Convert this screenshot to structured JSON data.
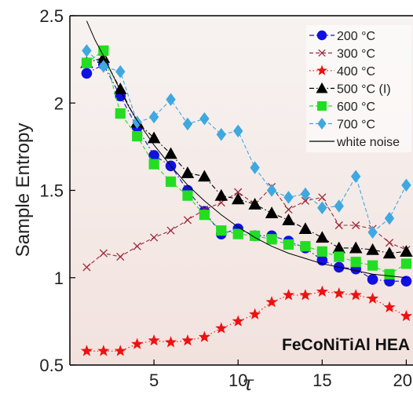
{
  "chart_data": {
    "type": "line",
    "title": "",
    "xlabel": "τ",
    "ylabel": "Sample Entropy",
    "xlim": [
      0,
      20.4
    ],
    "ylim": [
      0.5,
      2.5
    ],
    "xticks": [
      5,
      10,
      15,
      20
    ],
    "yticks": [
      0.5,
      1,
      1.5,
      2,
      2.5
    ],
    "xtick_labels": [
      "5",
      "10",
      "15",
      "20"
    ],
    "ytick_labels": [
      "0.5",
      "1",
      "1.5",
      "2",
      "2.5"
    ],
    "grid": false,
    "legend_position": "top-right",
    "background_gradient": [
      "#f7f3f1",
      "#f2e2de"
    ],
    "annotation": "FeCoNiTiAl HEA",
    "series": [
      {
        "name": "200 °C",
        "color": "#1010e0",
        "marker": "circle",
        "line_style": "dashdot",
        "x": [
          1,
          2,
          3,
          4,
          5,
          6,
          7,
          8,
          9,
          10,
          11,
          12,
          13,
          14,
          15,
          16,
          17,
          18,
          19,
          20
        ],
        "y": [
          2.17,
          2.22,
          2.04,
          1.86,
          1.7,
          1.64,
          1.5,
          1.38,
          1.25,
          1.28,
          1.24,
          1.24,
          1.21,
          1.17,
          1.1,
          1.06,
          1.05,
          0.99,
          0.98,
          0.98
        ]
      },
      {
        "name": "300 °C",
        "color": "#9a2a3a",
        "marker": "x",
        "line_style": "dashed",
        "x": [
          1,
          2,
          3,
          4,
          5,
          6,
          7,
          8,
          9,
          10,
          11,
          12,
          13,
          14,
          15,
          16,
          17,
          18,
          19,
          20
        ],
        "y": [
          1.06,
          1.14,
          1.12,
          1.18,
          1.23,
          1.27,
          1.33,
          1.39,
          1.43,
          1.49,
          1.42,
          1.52,
          1.39,
          1.44,
          1.46,
          1.3,
          1.3,
          1.28,
          1.2,
          1.16
        ]
      },
      {
        "name": "400 °C",
        "color": "#ee1111",
        "marker": "star",
        "line_style": "dotted",
        "x": [
          1,
          2,
          3,
          4,
          5,
          6,
          7,
          8,
          9,
          10,
          11,
          12,
          13,
          14,
          15,
          16,
          17,
          18,
          19,
          20
        ],
        "y": [
          0.58,
          0.58,
          0.58,
          0.62,
          0.64,
          0.63,
          0.64,
          0.66,
          0.71,
          0.75,
          0.79,
          0.86,
          0.9,
          0.9,
          0.92,
          0.91,
          0.9,
          0.88,
          0.83,
          0.78
        ]
      },
      {
        "name": "500 °C (I)",
        "color": "#000000",
        "marker": "triangle",
        "line_style": "dashdot",
        "x": [
          1,
          2,
          3,
          4,
          5,
          6,
          7,
          8,
          9,
          10,
          11,
          12,
          13,
          14,
          15,
          16,
          17,
          18,
          19,
          20
        ],
        "y": [
          2.23,
          2.26,
          2.08,
          1.89,
          1.8,
          1.71,
          1.6,
          1.58,
          1.47,
          1.45,
          1.42,
          1.37,
          1.33,
          1.28,
          1.23,
          1.17,
          1.17,
          1.16,
          1.14,
          1.15
        ]
      },
      {
        "name": "600 °C",
        "color": "#22dd22",
        "marker": "square",
        "line_style": "dashed",
        "x": [
          1,
          2,
          3,
          4,
          5,
          6,
          7,
          8,
          9,
          10,
          11,
          12,
          13,
          14,
          15,
          16,
          17,
          18,
          19,
          20
        ],
        "y": [
          2.23,
          2.3,
          1.94,
          1.81,
          1.65,
          1.55,
          1.47,
          1.36,
          1.27,
          1.25,
          1.24,
          1.22,
          1.19,
          1.18,
          1.15,
          1.12,
          1.09,
          1.07,
          1.02,
          1.08
        ]
      },
      {
        "name": "700 °C",
        "color": "#3fa8e0",
        "marker": "diamond",
        "line_style": "dashed",
        "x": [
          1,
          2,
          3,
          4,
          5,
          6,
          7,
          8,
          9,
          10,
          11,
          12,
          13,
          14,
          15,
          16,
          17,
          18,
          19,
          20
        ],
        "y": [
          2.3,
          2.21,
          2.18,
          1.89,
          1.92,
          2.02,
          1.88,
          1.91,
          1.82,
          1.84,
          1.63,
          1.5,
          1.46,
          1.48,
          1.4,
          1.41,
          1.58,
          1.26,
          1.34,
          1.53
        ]
      },
      {
        "name": "white noise",
        "color": "#000000",
        "marker": "none",
        "line_style": "solid",
        "x": [
          1.0,
          1.5,
          2,
          2.5,
          3,
          3.5,
          4,
          5,
          6,
          7,
          8,
          9,
          10,
          11,
          12,
          13,
          14,
          15,
          16,
          17,
          18,
          19,
          20
        ],
        "y": [
          2.47,
          2.36,
          2.27,
          2.17,
          2.07,
          1.98,
          1.9,
          1.76,
          1.64,
          1.53,
          1.44,
          1.36,
          1.29,
          1.23,
          1.18,
          1.14,
          1.11,
          1.08,
          1.06,
          1.04,
          1.02,
          1.01,
          1.0
        ]
      }
    ]
  }
}
